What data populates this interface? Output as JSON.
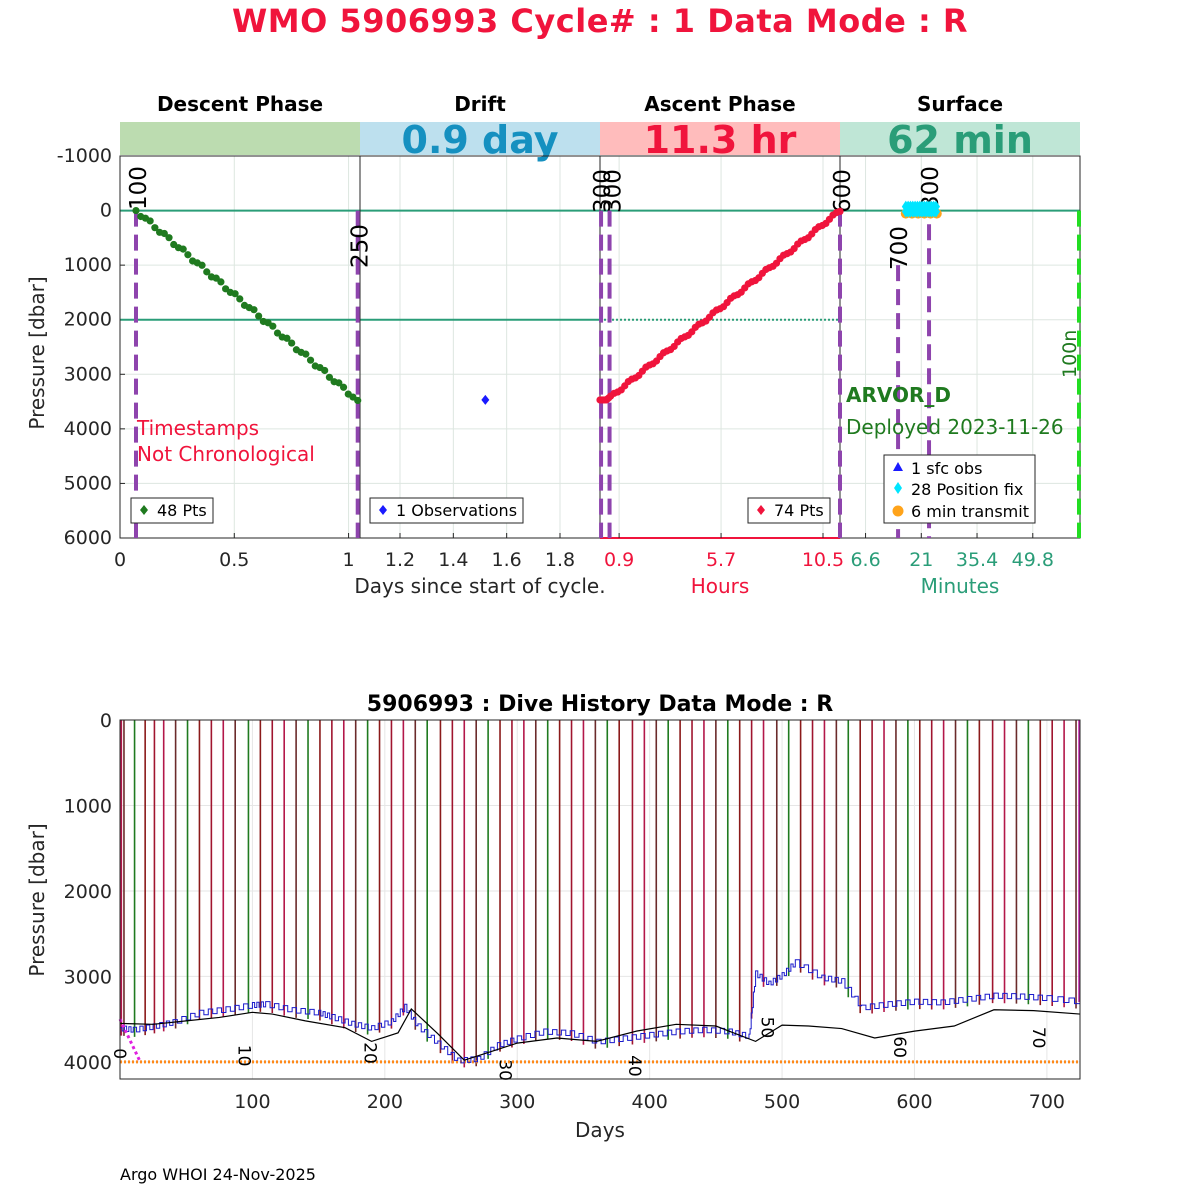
{
  "header": {
    "title": "WMO 5906993   Cycle# : 1   Data Mode : R",
    "footer": "Argo WHOI 24-Nov-2025"
  },
  "colors": {
    "title": "#f0143c",
    "descent": "#1f7a1f",
    "drift": "#1a1aff",
    "ascent": "#f0143c",
    "surface_axis": "#2a9d78",
    "phase_marker": "#8e44ad",
    "gridline_teal": "#2a9d78",
    "cyan": "#00e5ff",
    "orange": "#ffa31a",
    "green_dashed": "#22dd22",
    "band_descent": "#bcdcb0",
    "band_drift": "#bde0ee",
    "band_ascent": "#ffbcbc",
    "band_surface": "#bfe6d6"
  },
  "chart_data": [
    {
      "id": "cycle-timeline",
      "type": "scatter",
      "ylabel": "Pressure [dbar]",
      "ylim": [
        -1000,
        6000
      ],
      "y_reversed": true,
      "yticks": [
        -1000,
        0,
        1000,
        2000,
        3000,
        4000,
        5000,
        6000
      ],
      "horizontal_lines": [
        0,
        2000
      ],
      "panels": [
        {
          "id": "descent",
          "phase_title": "Descent Phase",
          "band_text": "",
          "xlabel": "Days since start of cycle.",
          "xlim": [
            0,
            1.05
          ],
          "xtick_values": [
            0,
            0.5,
            1
          ],
          "xtick_labels": [
            "0",
            "0.5",
            "1"
          ],
          "legend": "48 Pts",
          "series_color": "#1f7a1f",
          "points": 48,
          "start": [
            0.07,
            0
          ],
          "end": [
            1.04,
            3480
          ],
          "markers": [
            {
              "x": 0.07,
              "label": "100"
            },
            {
              "x": 1.04,
              "label": "250"
            }
          ],
          "annotation": [
            "Timestamps",
            "Not Chronological"
          ]
        },
        {
          "id": "drift",
          "phase_title": "Drift",
          "band_text": "0.9 day",
          "xlim": [
            1.05,
            1.95
          ],
          "xtick_values": [
            1.2,
            1.4,
            1.6,
            1.8
          ],
          "xtick_labels": [
            "1.2",
            "1.4",
            "1.6",
            "1.8"
          ],
          "legend": "1 Observations",
          "series_color": "#1a1aff",
          "observations": [
            {
              "x": 1.52,
              "y": 3470
            }
          ]
        },
        {
          "id": "ascent",
          "phase_title": "Ascent Phase",
          "band_text": "11.3 hr",
          "xlabel": "Hours",
          "xlim": [
            0,
            11.3
          ],
          "xtick_values": [
            0.9,
            5.7,
            10.5
          ],
          "xtick_labels": [
            "0.9",
            "5.7",
            "10.5"
          ],
          "legend": "74 Pts",
          "series_color": "#f0143c",
          "points": 74,
          "start": [
            0,
            3470
          ],
          "end": [
            11.3,
            0
          ],
          "markers": [
            {
              "x": 0.05,
              "label": "300"
            },
            {
              "x": 0.45,
              "label": "300"
            },
            {
              "x": 11.3,
              "label": "600"
            }
          ]
        },
        {
          "id": "surface",
          "phase_title": "Surface",
          "band_text": "62 min",
          "xlabel": "Minutes",
          "xlim": [
            0,
            62
          ],
          "xtick_values": [
            6.6,
            21,
            35.4,
            49.8
          ],
          "xtick_labels": [
            "6.6",
            "21",
            "35.4",
            "49.8"
          ],
          "float_type": "ARVOR_D",
          "deployed": "Deployed 2023-11-26",
          "legend": [
            "1 sfc obs",
            "28 Position fix",
            "6 min transmit"
          ],
          "position_fix_range": [
            17,
            25
          ],
          "markers": [
            {
              "x": 15,
              "label": "700"
            },
            {
              "x": 23,
              "label": "300"
            },
            {
              "x": 62,
              "label": "100n"
            }
          ]
        }
      ]
    },
    {
      "id": "dive-history",
      "type": "line",
      "title": "5906993 : Dive History      Data Mode : R",
      "xlabel": "Days",
      "ylabel": "Pressure [dbar]",
      "xlim": [
        0,
        725
      ],
      "ylim": [
        0,
        4200
      ],
      "y_reversed": true,
      "xticks": [
        100,
        200,
        300,
        400,
        500,
        600,
        700
      ],
      "yticks": [
        0,
        1000,
        2000,
        3000,
        4000
      ],
      "reference_depth": 4000,
      "cycle_labels": [
        {
          "day": 0,
          "label": "0",
          "depth": 3840
        },
        {
          "day": 85,
          "label": "10",
          "depth": 3800
        },
        {
          "day": 180,
          "label": "20",
          "depth": 3770
        },
        {
          "day": 282,
          "label": "30",
          "depth": 3970
        },
        {
          "day": 380,
          "label": "40",
          "depth": 3920
        },
        {
          "day": 480,
          "label": "50",
          "depth": 3470
        },
        {
          "day": 580,
          "label": "60",
          "depth": 3700
        },
        {
          "day": 685,
          "label": "70",
          "depth": 3590
        }
      ],
      "profile_days": [
        1,
        3,
        11,
        19,
        26,
        33,
        42,
        51,
        60,
        69,
        78,
        87,
        97,
        106,
        115,
        124,
        133,
        142,
        151,
        160,
        169,
        178,
        187,
        196,
        205,
        214,
        223,
        232,
        242,
        251,
        260,
        269,
        278,
        287,
        296,
        305,
        314,
        323,
        332,
        341,
        350,
        359,
        368,
        377,
        387,
        396,
        405,
        414,
        423,
        432,
        441,
        450,
        459,
        468,
        477,
        486,
        496,
        505,
        514,
        523,
        532,
        541,
        550,
        559,
        568,
        577,
        586,
        595,
        604,
        613,
        622,
        631,
        640,
        649,
        659,
        668,
        677,
        686,
        695,
        704,
        713,
        722
      ],
      "seafloor": {
        "days": [
          0,
          10,
          25,
          40,
          60,
          80,
          100,
          110,
          130,
          150,
          160,
          175,
          190,
          205,
          215,
          225,
          240,
          255,
          270,
          285,
          300,
          320,
          340,
          360,
          380,
          400,
          420,
          440,
          460,
          475,
          480,
          490,
          500,
          510,
          530,
          545,
          560,
          580,
          600,
          620,
          640,
          660,
          680,
          700,
          725
        ],
        "depths": [
          3600,
          3620,
          3580,
          3530,
          3420,
          3380,
          3330,
          3320,
          3390,
          3420,
          3470,
          3550,
          3600,
          3520,
          3350,
          3580,
          3780,
          3980,
          3960,
          3800,
          3720,
          3640,
          3660,
          3760,
          3720,
          3680,
          3640,
          3620,
          3640,
          3700,
          2960,
          3080,
          2980,
          2830,
          3010,
          3050,
          3360,
          3320,
          3290,
          3300,
          3260,
          3220,
          3230,
          3250,
          3290
        ]
      },
      "park_track": {
        "days": [
          0,
          25,
          50,
          75,
          100,
          115,
          140,
          170,
          190,
          210,
          220,
          240,
          260,
          280,
          300,
          330,
          360,
          390,
          420,
          450,
          480,
          500,
          520,
          545,
          570,
          600,
          630,
          660,
          690,
          725
        ],
        "depths": [
          3550,
          3560,
          3520,
          3480,
          3420,
          3440,
          3520,
          3600,
          3760,
          3660,
          3380,
          3670,
          3980,
          3880,
          3780,
          3720,
          3760,
          3640,
          3560,
          3580,
          3760,
          3570,
          3580,
          3610,
          3720,
          3640,
          3580,
          3390,
          3400,
          3440
        ]
      },
      "projection": {
        "days": [
          0,
          15
        ],
        "depths": [
          3500,
          3990
        ]
      }
    }
  ]
}
